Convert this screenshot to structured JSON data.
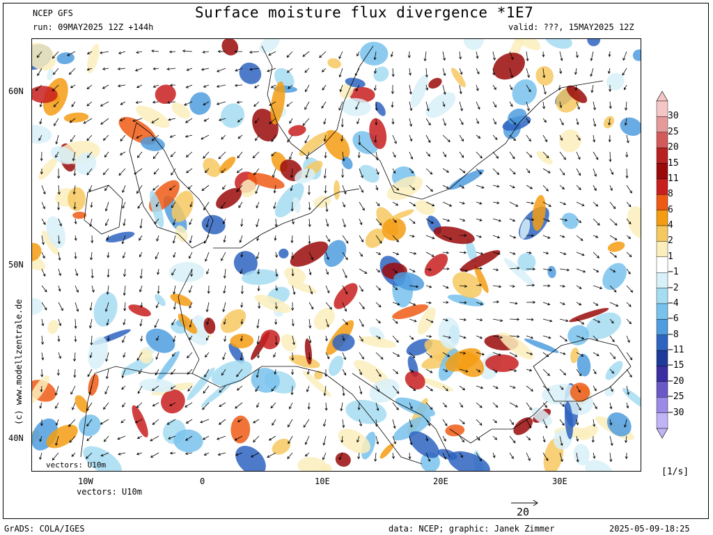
{
  "header": {
    "model": "NCEP GFS",
    "title": "Surface moisture flux divergence *1E7",
    "run": "run: 09MAY2025 12Z +144h",
    "valid": "valid: ???, 15MAY2025 12Z"
  },
  "map": {
    "lat_labels": [
      "60N",
      "50N",
      "40N"
    ],
    "lon_labels": [
      "10W",
      "0",
      "10E",
      "20E",
      "30E"
    ],
    "vectors_label": "vectors: U10m",
    "watermark": "(c) www.modellzentrale.de",
    "reference_vector": "20"
  },
  "colorbar": {
    "levels": [
      "30",
      "25",
      "20",
      "15",
      "11",
      "8",
      "6",
      "4",
      "2",
      "1",
      "−1",
      "−2",
      "−4",
      "−6",
      "−8",
      "−11",
      "−15",
      "−20",
      "−25",
      "−30"
    ],
    "colors": [
      "#f4c6c6",
      "#e59a9a",
      "#d35a5a",
      "#b92020",
      "#9a0a0a",
      "#c81e1e",
      "#ee5a14",
      "#f39c12",
      "#f6c860",
      "#fbeebc",
      "#ffffff",
      "#d8f0f8",
      "#a6dcf2",
      "#78c2ec",
      "#4f9cde",
      "#2e64c0",
      "#1d3a9a",
      "#3a2ea2",
      "#6a58c6",
      "#9b8ae6",
      "#c0b4f6"
    ],
    "unit": "[1/s]"
  },
  "footer": {
    "grads": "GrADS: COLA/IGES",
    "credit": "data: NCEP; graphic: Janek Zimmer",
    "timestamp": "2025-05-09-18:25"
  }
}
